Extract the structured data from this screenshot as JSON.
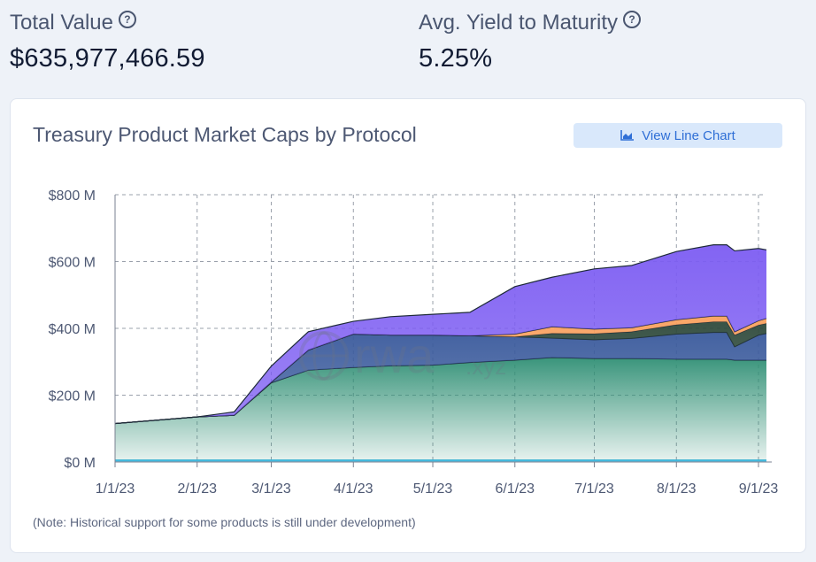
{
  "stats": {
    "total_value": {
      "label": "Total Value",
      "value": "$635,977,466.59",
      "help_icon": "question-circle-icon"
    },
    "avg_yield": {
      "label": "Avg. Yield to Maturity",
      "value": "5.25%",
      "help_icon": "question-circle-icon"
    }
  },
  "card": {
    "title": "Treasury Product Market Caps by Protocol",
    "view_button": {
      "label": "View Line Chart",
      "icon": "line-chart-icon"
    },
    "note": "(Note: Historical support for some products is still under development)",
    "watermark": {
      "main": "rwa",
      "suffix": ".xyz"
    }
  },
  "colors": {
    "purple": "#7c5cf2",
    "orange": "#f9a15f",
    "darkgreen": "#2f4a3c",
    "navy": "#3a5a9c",
    "teal": "#2f8f74",
    "cyan": "#40b8e0",
    "grid": "#9aa0ab",
    "button_bg": "#d9e8fb",
    "button_text": "#2f6fd6"
  },
  "chart_data": {
    "type": "area",
    "stacked": true,
    "title": "Treasury Product Market Caps by Protocol",
    "xlabel": "",
    "ylabel": "",
    "ylim": [
      0,
      800
    ],
    "y_unit": "M",
    "y_ticks": [
      0,
      200,
      400,
      600,
      800
    ],
    "y_tick_labels": [
      "$0 M",
      "$200 M",
      "$400 M",
      "$600 M",
      "$800 M"
    ],
    "x_ticks": [
      "2023-01-01",
      "2023-02-01",
      "2023-03-01",
      "2023-04-01",
      "2023-05-01",
      "2023-06-01",
      "2023-07-01",
      "2023-08-01",
      "2023-09-01"
    ],
    "x_tick_labels": [
      "1/1/23",
      "2/1/23",
      "3/1/23",
      "4/1/23",
      "5/1/23",
      "6/1/23",
      "7/1/23",
      "8/1/23",
      "9/1/23"
    ],
    "x_range": [
      "2023-01-01",
      "2023-09-04"
    ],
    "grid": true,
    "legend": "none",
    "x": [
      "2023-01-01",
      "2023-02-01",
      "2023-02-15",
      "2023-03-01",
      "2023-03-15",
      "2023-04-01",
      "2023-04-15",
      "2023-05-01",
      "2023-05-15",
      "2023-06-01",
      "2023-06-15",
      "2023-07-01",
      "2023-07-15",
      "2023-08-01",
      "2023-08-15",
      "2023-08-20",
      "2023-08-23",
      "2023-09-01",
      "2023-09-04"
    ],
    "series": [
      {
        "color": "#40b8e0",
        "values": [
          5,
          5,
          5,
          5,
          5,
          5,
          5,
          5,
          5,
          5,
          5,
          5,
          5,
          5,
          5,
          5,
          5,
          5,
          5
        ]
      },
      {
        "color": "#2f8f74",
        "values": [
          110,
          130,
          135,
          232,
          270,
          278,
          283,
          285,
          293,
          300,
          308,
          305,
          305,
          303,
          303,
          303,
          300,
          300,
          300
        ]
      },
      {
        "color": "#3a5a9c",
        "values": [
          0,
          0,
          0,
          2,
          60,
          100,
          92,
          90,
          80,
          70,
          58,
          56,
          60,
          75,
          80,
          80,
          40,
          75,
          80
        ]
      },
      {
        "color": "#2f4a3c",
        "values": [
          0,
          0,
          0,
          0,
          0,
          0,
          0,
          0,
          0,
          0,
          14,
          18,
          20,
          28,
          32,
          32,
          35,
          30,
          30
        ]
      },
      {
        "color": "#f9a15f",
        "values": [
          0,
          0,
          0,
          0,
          0,
          0,
          0,
          0,
          0,
          8,
          20,
          14,
          12,
          15,
          17,
          17,
          10,
          13,
          15
        ]
      },
      {
        "color": "#7c5cf2",
        "values": [
          0,
          0,
          10,
          48,
          55,
          38,
          55,
          62,
          70,
          142,
          148,
          180,
          186,
          204,
          213,
          213,
          242,
          216,
          205
        ]
      }
    ]
  }
}
